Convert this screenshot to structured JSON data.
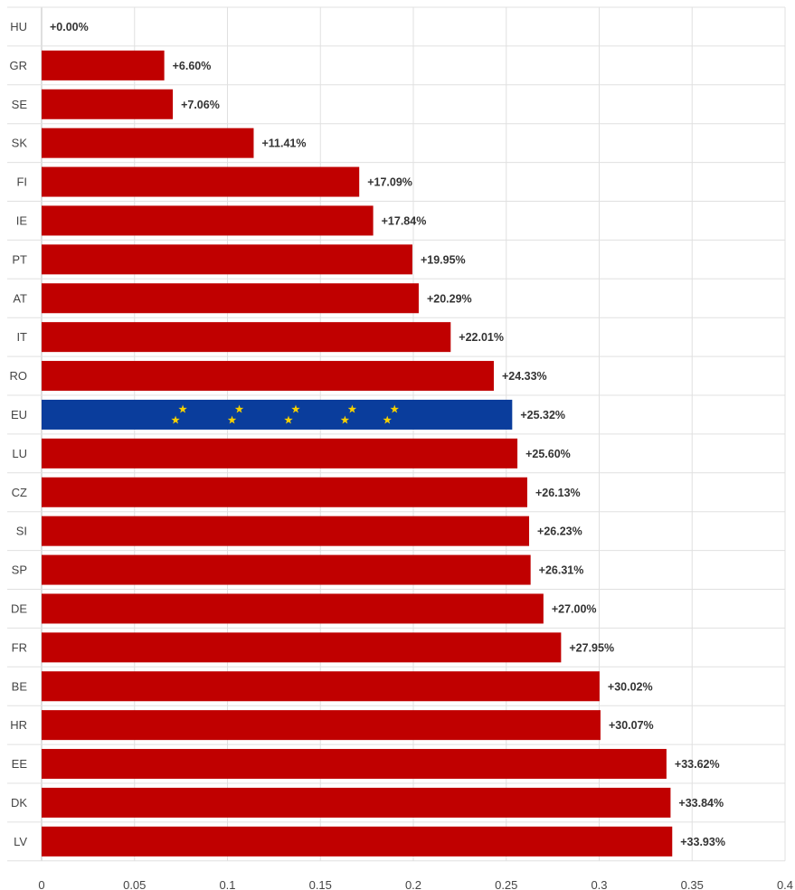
{
  "chart_data": {
    "type": "bar",
    "orientation": "horizontal",
    "categories": [
      "HU",
      "GR",
      "SE",
      "SK",
      "FI",
      "IE",
      "PT",
      "AT",
      "IT",
      "RO",
      "EU",
      "LU",
      "CZ",
      "SI",
      "SP",
      "DE",
      "FR",
      "BE",
      "HR",
      "EE",
      "DK",
      "LV"
    ],
    "values": [
      0.0,
      0.066,
      0.0706,
      0.1141,
      0.1709,
      0.1784,
      0.1995,
      0.2029,
      0.2201,
      0.2433,
      0.2532,
      0.256,
      0.2613,
      0.2623,
      0.2631,
      0.27,
      0.2795,
      0.3002,
      0.3007,
      0.3362,
      0.3384,
      0.3393
    ],
    "data_labels": [
      "+0.00%",
      "+6.60%",
      "+7.06%",
      "+11.41%",
      "+17.09%",
      "+17.84%",
      "+19.95%",
      "+20.29%",
      "+22.01%",
      "+24.33%",
      "+25.32%",
      "+25.60%",
      "+26.13%",
      "+26.23%",
      "+26.31%",
      "+27.00%",
      "+27.95%",
      "+30.02%",
      "+30.07%",
      "+33.62%",
      "+33.84%",
      "+33.93%"
    ],
    "xlim": [
      0,
      0.4
    ],
    "x_ticks": [
      "0",
      "0.05",
      "0.1",
      "0.15",
      "0.2",
      "0.25",
      "0.3",
      "0.35",
      "0.4"
    ],
    "x_tick_values": [
      0,
      0.05,
      0.1,
      0.15,
      0.2,
      0.25,
      0.3,
      0.35,
      0.4
    ],
    "title": "",
    "xlabel": "",
    "ylabel": "",
    "grid": true,
    "colors": {
      "bar": "#c00000",
      "highlight_bar": "#0a3d9c",
      "highlight_stars": "#f5d000"
    },
    "highlight_category": "EU"
  }
}
